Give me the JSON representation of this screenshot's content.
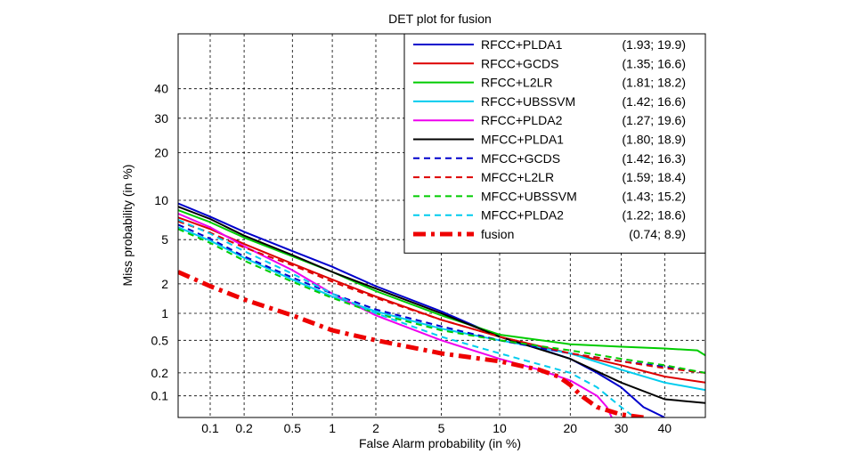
{
  "chart_data": {
    "type": "line",
    "title": "DET plot for fusion",
    "xlabel": "False Alarm probability (in %)",
    "ylabel": "Miss probability (in %)",
    "xscale": "probit",
    "yscale": "probit",
    "xlim": [
      0.05,
      50
    ],
    "ylim": [
      0.05,
      60
    ],
    "xticks": [
      0.1,
      0.2,
      0.5,
      1,
      2,
      5,
      10,
      20,
      30,
      40
    ],
    "xtick_labels": [
      "0.1",
      "0.2",
      "0.5",
      "1",
      "2",
      "5",
      "10",
      "20",
      "30",
      "40"
    ],
    "yticks": [
      0.1,
      0.2,
      0.5,
      1,
      2,
      5,
      10,
      20,
      30,
      40
    ],
    "ytick_labels": [
      "0.1",
      "0.2",
      "0.5",
      "1",
      "2",
      "5",
      "10",
      "20",
      "30",
      "40"
    ],
    "grid": true,
    "legend_position": "top-right",
    "series": [
      {
        "name": "RFCC+PLDA1",
        "legend_value": "(1.93; 19.9)",
        "color": "#0000cc",
        "style": "solid",
        "x": [
          0.05,
          0.1,
          0.2,
          0.5,
          1,
          2,
          5,
          10,
          15,
          20,
          25,
          30,
          35,
          40
        ],
        "y": [
          9.5,
          7.6,
          5.8,
          4.0,
          2.9,
          1.9,
          1.05,
          0.55,
          0.4,
          0.3,
          0.2,
          0.13,
          0.07,
          0.05
        ]
      },
      {
        "name": "RFCC+GCDS",
        "legend_value": "(1.35; 16.6)",
        "color": "#dd0000",
        "style": "solid",
        "x": [
          0.05,
          0.1,
          0.2,
          0.5,
          1,
          2,
          5,
          10,
          20,
          30,
          40,
          50
        ],
        "y": [
          7.5,
          6.1,
          4.6,
          3.1,
          2.2,
          1.5,
          0.85,
          0.55,
          0.35,
          0.25,
          0.18,
          0.15
        ]
      },
      {
        "name": "RFCC+L2LR",
        "legend_value": "(1.81; 18.2)",
        "color": "#00cc00",
        "style": "solid",
        "x": [
          0.05,
          0.1,
          0.2,
          0.5,
          1,
          2,
          5,
          10,
          20,
          30,
          40,
          48,
          50
        ],
        "y": [
          8.5,
          6.9,
          5.2,
          3.6,
          2.6,
          1.7,
          0.95,
          0.58,
          0.45,
          0.42,
          0.4,
          0.38,
          0.33
        ]
      },
      {
        "name": "RFCC+UBSSVM",
        "legend_value": "(1.42; 16.6)",
        "color": "#00ccee",
        "style": "solid",
        "x": [
          0.05,
          0.1,
          0.2,
          0.5,
          1,
          2,
          5,
          10,
          20,
          30,
          40,
          50
        ],
        "y": [
          6.3,
          4.9,
          3.5,
          2.2,
          1.5,
          1.05,
          0.68,
          0.5,
          0.35,
          0.22,
          0.15,
          0.12
        ]
      },
      {
        "name": "RFCC+PLDA2",
        "legend_value": "(1.27; 19.6)",
        "color": "#ee00ee",
        "style": "solid",
        "x": [
          0.05,
          0.1,
          0.2,
          0.5,
          1,
          2,
          5,
          10,
          15,
          20,
          25,
          27,
          28
        ],
        "y": [
          8.0,
          6.3,
          4.4,
          2.7,
          1.6,
          0.95,
          0.5,
          0.3,
          0.22,
          0.16,
          0.1,
          0.07,
          0.05
        ]
      },
      {
        "name": "MFCC+PLDA1",
        "legend_value": "(1.80; 18.9)",
        "color": "#000000",
        "style": "solid",
        "x": [
          0.05,
          0.1,
          0.2,
          0.5,
          1,
          2,
          5,
          10,
          20,
          30,
          40,
          50
        ],
        "y": [
          9.0,
          7.3,
          5.4,
          3.7,
          2.6,
          1.8,
          1.0,
          0.55,
          0.3,
          0.15,
          0.09,
          0.08
        ]
      },
      {
        "name": "MFCC+GCDS",
        "legend_value": "(1.42; 16.3)",
        "color": "#0000cc",
        "style": "dashed",
        "x": [
          0.05,
          0.1,
          0.2,
          0.5,
          1,
          2,
          5,
          10,
          20,
          30,
          40,
          50
        ],
        "y": [
          6.6,
          5.1,
          3.6,
          2.3,
          1.6,
          1.1,
          0.72,
          0.5,
          0.35,
          0.28,
          0.24,
          0.2
        ]
      },
      {
        "name": "MFCC+L2LR",
        "legend_value": "(1.59; 18.4)",
        "color": "#dd0000",
        "style": "dashed",
        "x": [
          0.05,
          0.1,
          0.2,
          0.5,
          1,
          2,
          5,
          10,
          20,
          30,
          40,
          50
        ],
        "y": [
          7.0,
          5.7,
          4.3,
          3.0,
          2.1,
          1.45,
          0.85,
          0.55,
          0.35,
          0.28,
          0.23,
          0.2
        ]
      },
      {
        "name": "MFCC+UBSSVM",
        "legend_value": "(1.43; 15.2)",
        "color": "#00cc00",
        "style": "dashed",
        "x": [
          0.05,
          0.1,
          0.2,
          0.5,
          1,
          2,
          5,
          10,
          20,
          30,
          40,
          50
        ],
        "y": [
          6.1,
          4.7,
          3.3,
          2.1,
          1.45,
          1.0,
          0.65,
          0.5,
          0.38,
          0.3,
          0.25,
          0.2
        ]
      },
      {
        "name": "MFCC+PLDA2",
        "legend_value": "(1.22; 18.6)",
        "color": "#00ccee",
        "style": "dashed",
        "x": [
          0.05,
          0.1,
          0.2,
          0.5,
          1,
          2,
          5,
          10,
          20,
          25,
          30,
          33
        ],
        "y": [
          7.2,
          5.6,
          4.0,
          2.5,
          1.6,
          1.0,
          0.55,
          0.35,
          0.2,
          0.13,
          0.07,
          0.05
        ]
      },
      {
        "name": "fusion",
        "legend_value": "(0.74; 8.9)",
        "color": "#ee0000",
        "style": "dashdot-thick",
        "x": [
          0.05,
          0.1,
          0.2,
          0.5,
          1,
          2,
          5,
          10,
          15,
          18,
          20,
          22,
          25,
          30,
          35
        ],
        "y": [
          2.6,
          1.9,
          1.4,
          0.95,
          0.65,
          0.5,
          0.35,
          0.28,
          0.22,
          0.18,
          0.14,
          0.1,
          0.07,
          0.055,
          0.05
        ]
      }
    ]
  }
}
